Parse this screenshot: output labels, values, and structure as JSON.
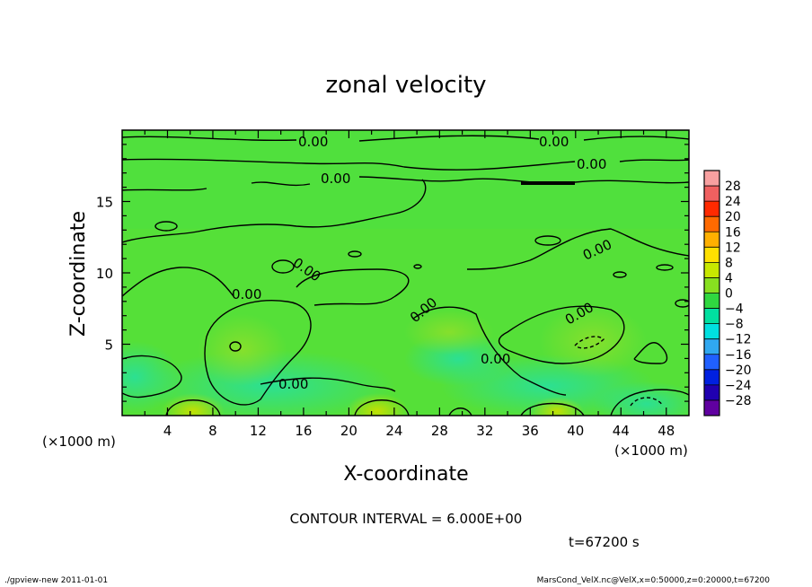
{
  "chart_data": {
    "type": "heatmap",
    "title": "zonal velocity",
    "xlabel": "X-coordinate",
    "ylabel": "Z-coordinate",
    "x_unit_label": "(×1000 m)",
    "y_unit_label": "(×1000 m)",
    "xlim": [
      0,
      50
    ],
    "ylim": [
      0,
      20
    ],
    "x_ticks": [
      "4",
      "8",
      "12",
      "16",
      "20",
      "24",
      "28",
      "32",
      "36",
      "40",
      "44",
      "48"
    ],
    "y_ticks": [
      "5",
      "10",
      "15"
    ],
    "contour_interval_text": "CONTOUR INTERVAL = 6.000E+00",
    "contour_labels": [
      "0.00",
      "0.00",
      "0.00",
      "0.00",
      "0.00",
      "0.00",
      "0.00",
      "0.00",
      "0.00",
      "0.00",
      "0.00"
    ],
    "colorbar": {
      "labels": [
        "28",
        "24",
        "20",
        "16",
        "12",
        "8",
        "4",
        "0",
        "−4",
        "−8",
        "−12",
        "−16",
        "−20",
        "−24",
        "−28"
      ],
      "colors": [
        "#f8a0a0",
        "#f06060",
        "#ff2a00",
        "#ff6a00",
        "#ffb000",
        "#ffe000",
        "#c8e800",
        "#88e020",
        "#30d840",
        "#00e0a0",
        "#00e0e0",
        "#30a8f0",
        "#2060ff",
        "#0020e0",
        "#2000b0",
        "#6000a0"
      ]
    },
    "time_text": "t=67200 s"
  },
  "footer": {
    "left": "./gpview-new   2011-01-01",
    "right": "MarsCond_VelX.nc@VelX,x=0:50000,z=0:20000,t=67200"
  },
  "colors": {
    "field_base": "#55e038",
    "field_light": "#7ce030",
    "field_cool": "#35e070",
    "field_cyan": "#20e0b0",
    "contour": "#000000"
  }
}
